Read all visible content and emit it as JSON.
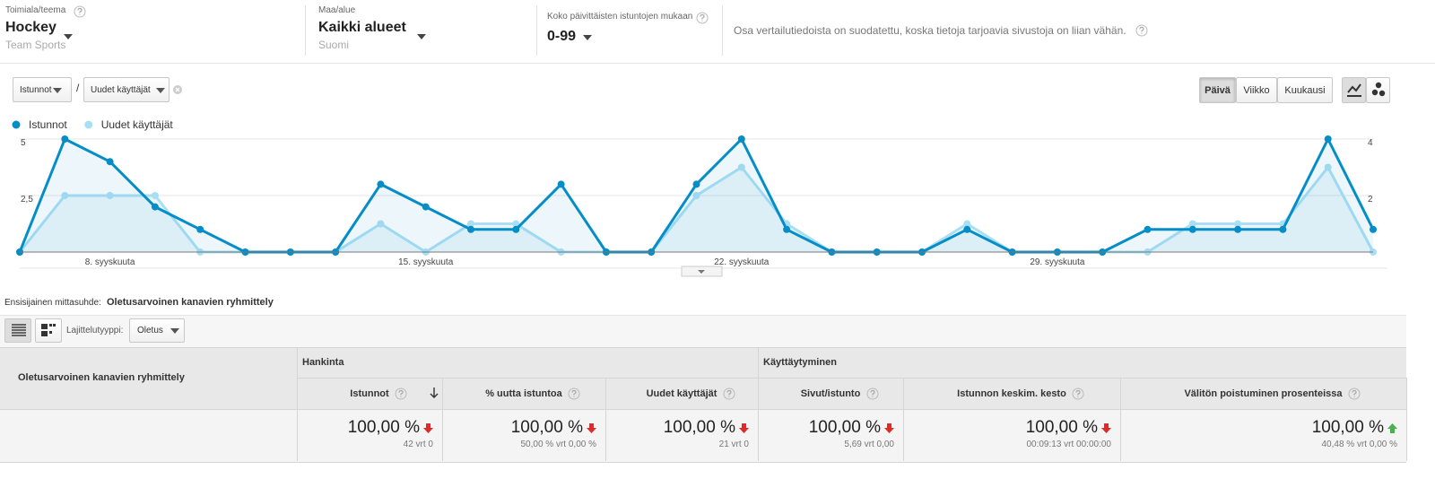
{
  "filters": [
    {
      "label": "Toimiala/teema",
      "value": "Hockey",
      "sub": "Team Sports"
    },
    {
      "label": "Maa/alue",
      "value": "Kaikki alueet",
      "sub": "Suomi"
    },
    {
      "label": "Koko päivittäisten istuntojen mukaan",
      "value": "0-99"
    }
  ],
  "notice": "Osa vertailutiedoista on suodatettu, koska tietoja tarjoavia sivustoja on liian vähän.",
  "controls": {
    "metric1": "Istunnot",
    "separator": "/",
    "metric2": "Uudet käyttäjät",
    "periods": [
      "Päivä",
      "Viikko",
      "Kuukausi"
    ]
  },
  "chart_data": {
    "type": "line",
    "categories": [
      null,
      null,
      "8. syyskuuta",
      null,
      null,
      null,
      null,
      null,
      null,
      "15. syyskuuta",
      null,
      null,
      null,
      null,
      null,
      null,
      "22. syyskuuta",
      null,
      null,
      null,
      null,
      null,
      null,
      "29. syyskuuta",
      null,
      null,
      null,
      null,
      null,
      null,
      null
    ],
    "series": [
      {
        "name": "Istunnot",
        "color": "#058dc7",
        "values": [
          0,
          5,
          4,
          2,
          1,
          0,
          0,
          0,
          3,
          2,
          1,
          1,
          3,
          0,
          0,
          3,
          5,
          1,
          0,
          0,
          0,
          1,
          0,
          0,
          0,
          1,
          1,
          1,
          1,
          5,
          1
        ]
      },
      {
        "name": "Uudet käyttäjät",
        "color": "#a9dff4",
        "axis": "y2",
        "values": [
          0,
          2,
          2,
          2,
          0,
          0,
          0,
          0,
          1,
          0,
          1,
          1,
          0,
          0,
          0,
          2,
          3,
          1,
          0,
          0,
          0,
          1,
          0,
          0,
          0,
          0,
          1,
          1,
          1,
          3,
          0
        ]
      }
    ],
    "ylim": [
      0,
      5
    ],
    "yticks": [
      {
        "value": 2.5,
        "label": "2,5"
      },
      5
    ],
    "y2lim": [
      0,
      4
    ],
    "y2ticks": [
      2,
      4
    ],
    "grid": true,
    "legend": "top-left"
  },
  "table": {
    "primary_label": "Ensisijainen mittasuhde:",
    "primary_value": "Oletusarvoinen kanavien ryhmittely",
    "sort_label": "Lajittelutyyppi:",
    "sort_value": "Oletus",
    "row_header": "Oletusarvoinen kanavien ryhmittely",
    "groups": [
      "Hankinta",
      "Käyttäytyminen"
    ],
    "columns": [
      {
        "name": "Istunnot",
        "value": "100,00 %",
        "compare": "42 vrt 0",
        "trend": "down"
      },
      {
        "name": "% uutta istuntoa",
        "value": "100,00 %",
        "compare": "50,00 % vrt 0,00 %",
        "trend": "down"
      },
      {
        "name": "Uudet käyttäjät",
        "value": "100,00 %",
        "compare": "21 vrt 0",
        "trend": "down"
      },
      {
        "name": "Sivut/istunto",
        "value": "100,00 %",
        "compare": "5,69 vrt 0,00",
        "trend": "down"
      },
      {
        "name": "Istunnon keskim. kesto",
        "value": "100,00 %",
        "compare": "00:09:13 vrt 00:00:00",
        "trend": "down"
      },
      {
        "name": "Välitön poistuminen prosenteissa",
        "value": "100,00 %",
        "compare": "40,48 % vrt 0,00 %",
        "trend": "up"
      }
    ]
  }
}
